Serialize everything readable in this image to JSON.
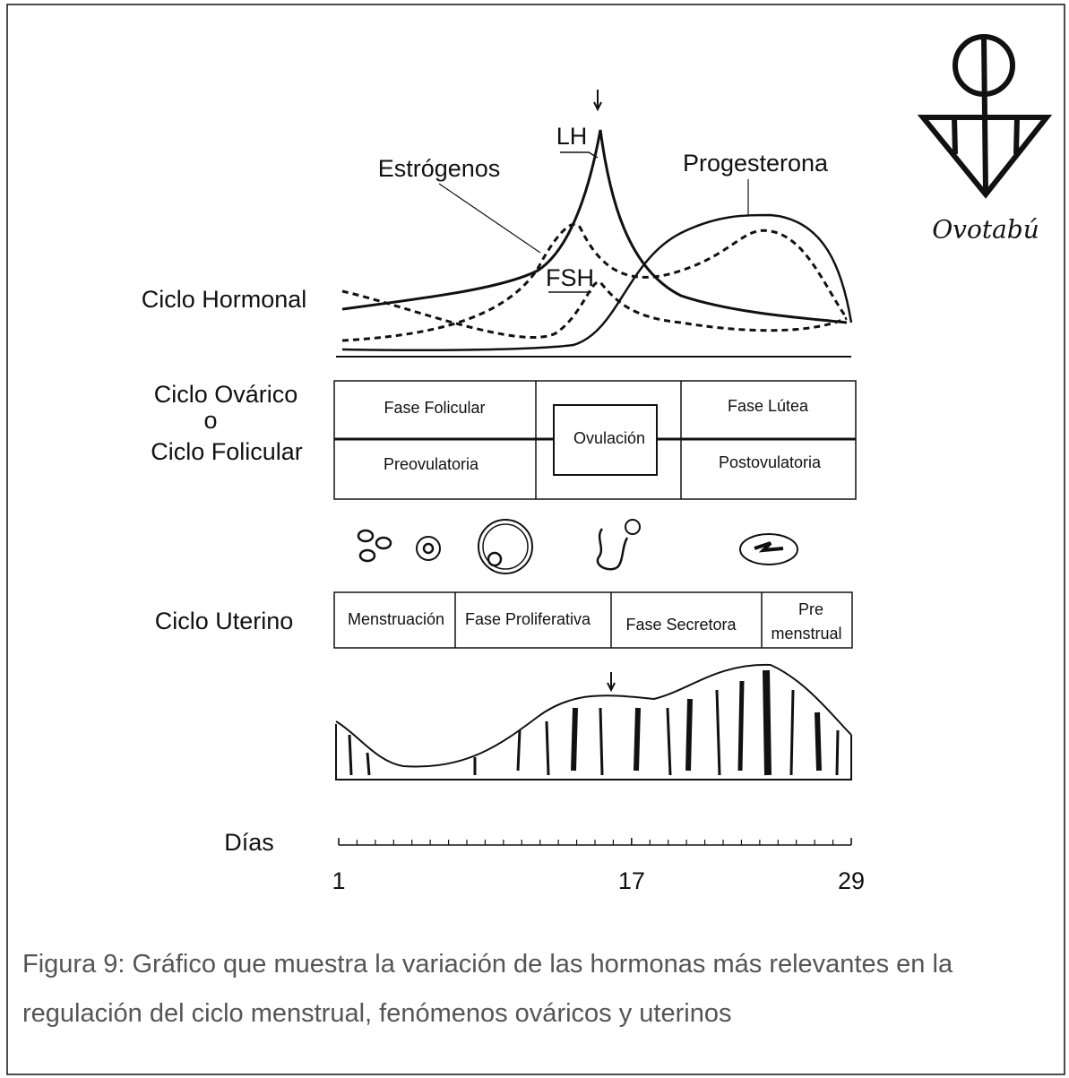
{
  "hormonal": {
    "label": "Ciclo Hormonal",
    "lh": "LH",
    "estrogens": "Estrógenos",
    "progesterone": "Progesterona",
    "fsh": "FSH"
  },
  "ovarian": {
    "label": [
      "Ciclo Ovárico",
      "o",
      "Ciclo Folicular"
    ],
    "phases": [
      "Fase Folicular",
      "Ovulación",
      "Fase Lútea"
    ],
    "subphases": [
      "Preovulatoria",
      "Postovulatoria"
    ]
  },
  "uterine": {
    "label": "Ciclo Uterino",
    "phases": [
      "Menstruación",
      "Fase Proliferativa",
      "Fase Secretora"
    ],
    "premenstrual": [
      "Pre",
      "menstrual"
    ]
  },
  "days": {
    "label": "Días",
    "ticks": [
      1,
      17,
      29
    ]
  },
  "logo": "Ovotabú",
  "caption": [
    "Figura 9: Gráfico que muestra la variación de las hormonas más relevantes en la",
    "regulación del ciclo menstrual, fenómenos ováricos y uterinos"
  ]
}
